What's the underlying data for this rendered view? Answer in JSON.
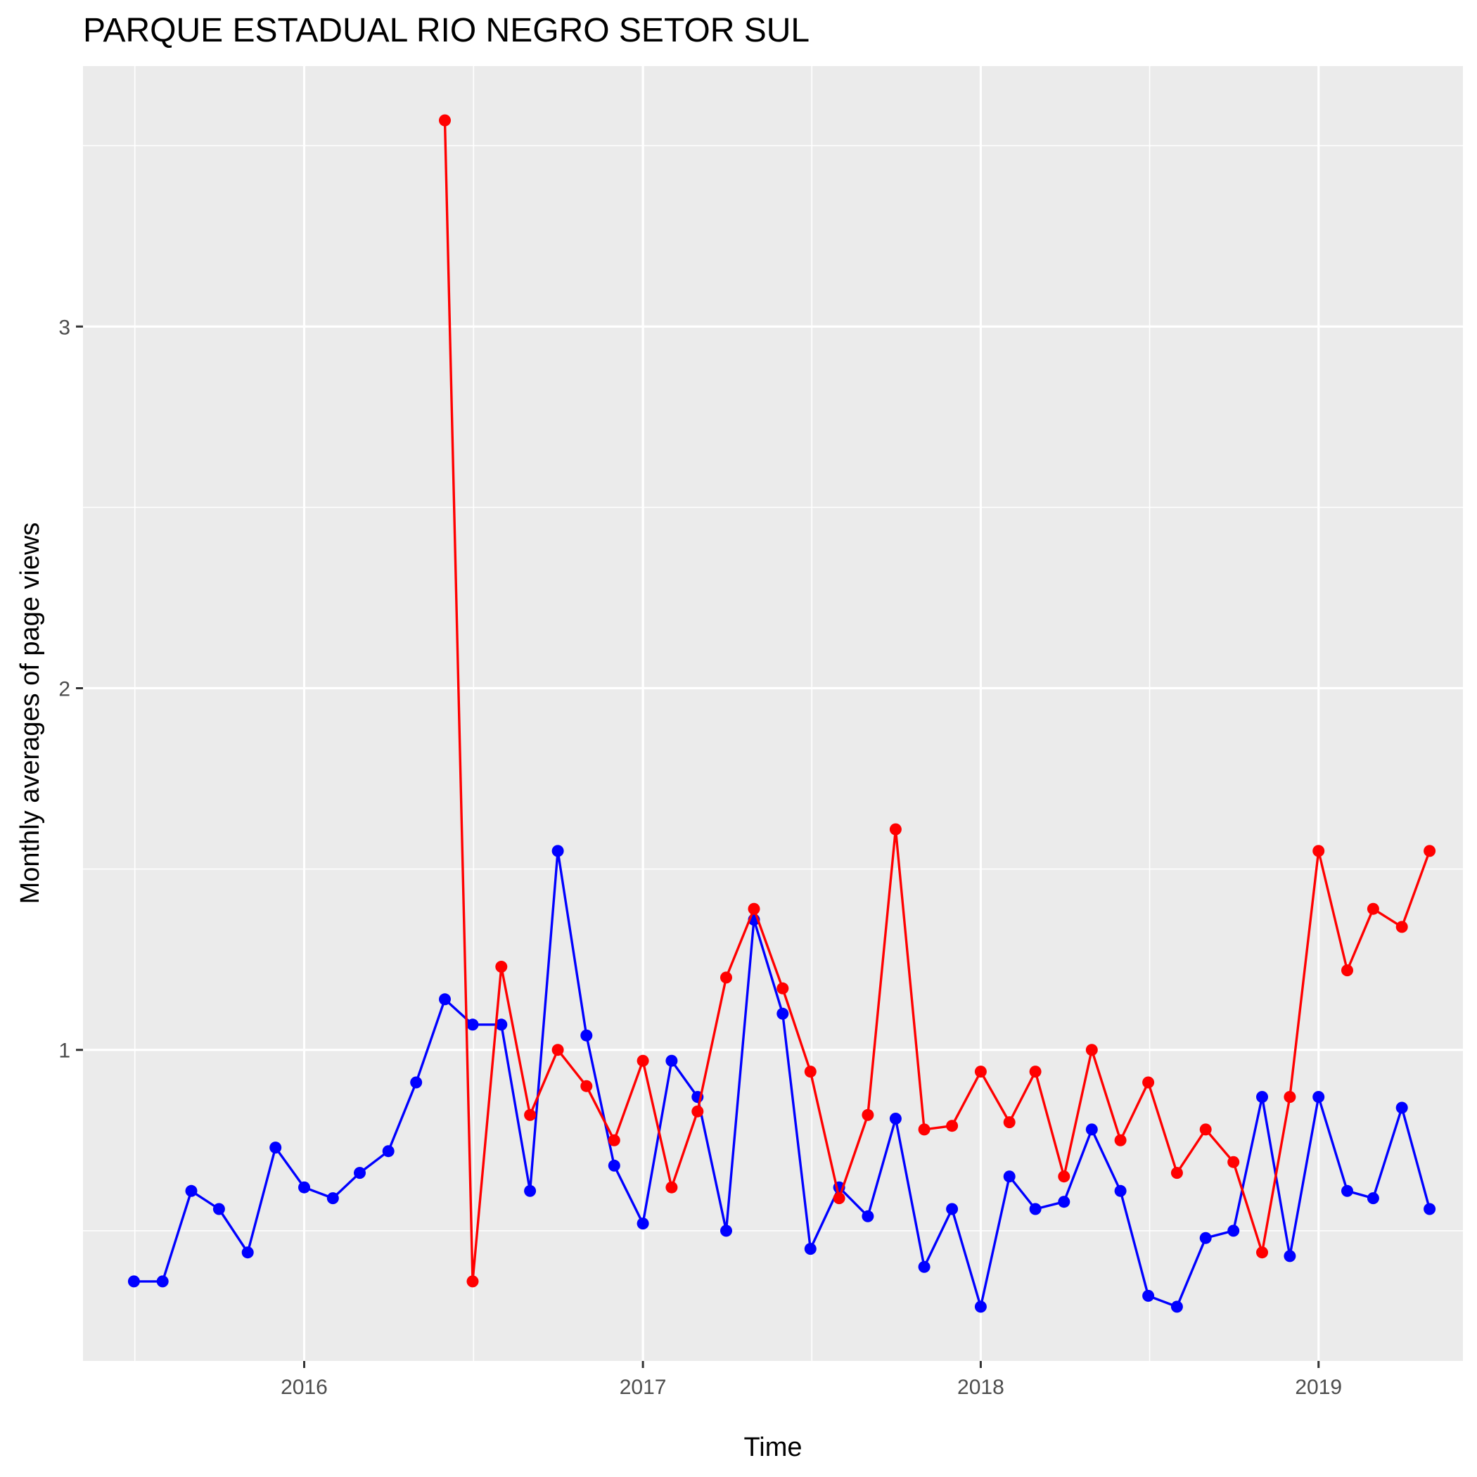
{
  "chart_data": {
    "type": "line",
    "title": "PARQUE ESTADUAL RIO NEGRO SETOR SUL",
    "xlabel": "Time",
    "ylabel": "Monthly averages of page views",
    "x_ticks": [
      "2016",
      "2017",
      "2018",
      "2019"
    ],
    "y_ticks": [
      "1",
      "2",
      "3"
    ],
    "xlim": [
      "2015-05-07",
      "2019-06-06"
    ],
    "ylim": [
      0.14,
      3.72
    ],
    "grid": true,
    "legend": "none",
    "series": [
      {
        "color": "#0000ff",
        "points": [
          [
            "2015-07-01",
            0.36
          ],
          [
            "2015-08-01",
            0.36
          ],
          [
            "2015-09-01",
            0.61
          ],
          [
            "2015-10-01",
            0.56
          ],
          [
            "2015-11-01",
            0.44
          ],
          [
            "2015-12-01",
            0.73
          ],
          [
            "2016-01-01",
            0.62
          ],
          [
            "2016-02-01",
            0.59
          ],
          [
            "2016-03-01",
            0.66
          ],
          [
            "2016-04-01",
            0.72
          ],
          [
            "2016-05-01",
            0.91
          ],
          [
            "2016-06-01",
            1.14
          ],
          [
            "2016-07-01",
            1.07
          ],
          [
            "2016-08-01",
            1.07
          ],
          [
            "2016-09-01",
            0.61
          ],
          [
            "2016-10-01",
            1.55
          ],
          [
            "2016-11-01",
            1.04
          ],
          [
            "2016-12-01",
            0.68
          ],
          [
            "2017-01-01",
            0.52
          ],
          [
            "2017-02-01",
            0.97
          ],
          [
            "2017-03-01",
            0.87
          ],
          [
            "2017-04-01",
            0.5
          ],
          [
            "2017-05-01",
            1.36
          ],
          [
            "2017-06-01",
            1.1
          ],
          [
            "2017-07-01",
            0.45
          ],
          [
            "2017-08-01",
            0.62
          ],
          [
            "2017-09-01",
            0.54
          ],
          [
            "2017-10-01",
            0.81
          ],
          [
            "2017-11-01",
            0.4
          ],
          [
            "2017-12-01",
            0.56
          ],
          [
            "2018-01-01",
            0.29
          ],
          [
            "2018-02-01",
            0.65
          ],
          [
            "2018-03-01",
            0.56
          ],
          [
            "2018-04-01",
            0.58
          ],
          [
            "2018-05-01",
            0.78
          ],
          [
            "2018-06-01",
            0.61
          ],
          [
            "2018-07-01",
            0.32
          ],
          [
            "2018-08-01",
            0.29
          ],
          [
            "2018-09-01",
            0.48
          ],
          [
            "2018-10-01",
            0.5
          ],
          [
            "2018-11-01",
            0.87
          ],
          [
            "2018-12-01",
            0.43
          ],
          [
            "2019-01-01",
            0.87
          ],
          [
            "2019-02-01",
            0.61
          ],
          [
            "2019-03-01",
            0.59
          ],
          [
            "2019-04-01",
            0.84
          ],
          [
            "2019-05-01",
            0.56
          ]
        ]
      },
      {
        "color": "#ff0000",
        "points": [
          [
            "2016-06-01",
            3.57
          ],
          [
            "2016-07-01",
            0.36
          ],
          [
            "2016-08-01",
            1.23
          ],
          [
            "2016-09-01",
            0.82
          ],
          [
            "2016-10-01",
            1.0
          ],
          [
            "2016-11-01",
            0.9
          ],
          [
            "2016-12-01",
            0.75
          ],
          [
            "2017-01-01",
            0.97
          ],
          [
            "2017-02-01",
            0.62
          ],
          [
            "2017-03-01",
            0.83
          ],
          [
            "2017-04-01",
            1.2
          ],
          [
            "2017-05-01",
            1.39
          ],
          [
            "2017-06-01",
            1.17
          ],
          [
            "2017-07-01",
            0.94
          ],
          [
            "2017-08-01",
            0.59
          ],
          [
            "2017-09-01",
            0.82
          ],
          [
            "2017-10-01",
            1.61
          ],
          [
            "2017-11-01",
            0.78
          ],
          [
            "2017-12-01",
            0.79
          ],
          [
            "2018-01-01",
            0.94
          ],
          [
            "2018-02-01",
            0.8
          ],
          [
            "2018-03-01",
            0.94
          ],
          [
            "2018-04-01",
            0.65
          ],
          [
            "2018-05-01",
            1.0
          ],
          [
            "2018-06-01",
            0.75
          ],
          [
            "2018-07-01",
            0.91
          ],
          [
            "2018-08-01",
            0.66
          ],
          [
            "2018-09-01",
            0.78
          ],
          [
            "2018-10-01",
            0.69
          ],
          [
            "2018-11-01",
            0.44
          ],
          [
            "2018-12-01",
            0.87
          ],
          [
            "2019-01-01",
            1.55
          ],
          [
            "2019-02-01",
            1.22
          ],
          [
            "2019-03-01",
            1.39
          ],
          [
            "2019-04-01",
            1.34
          ],
          [
            "2019-05-01",
            1.55
          ]
        ]
      }
    ]
  }
}
